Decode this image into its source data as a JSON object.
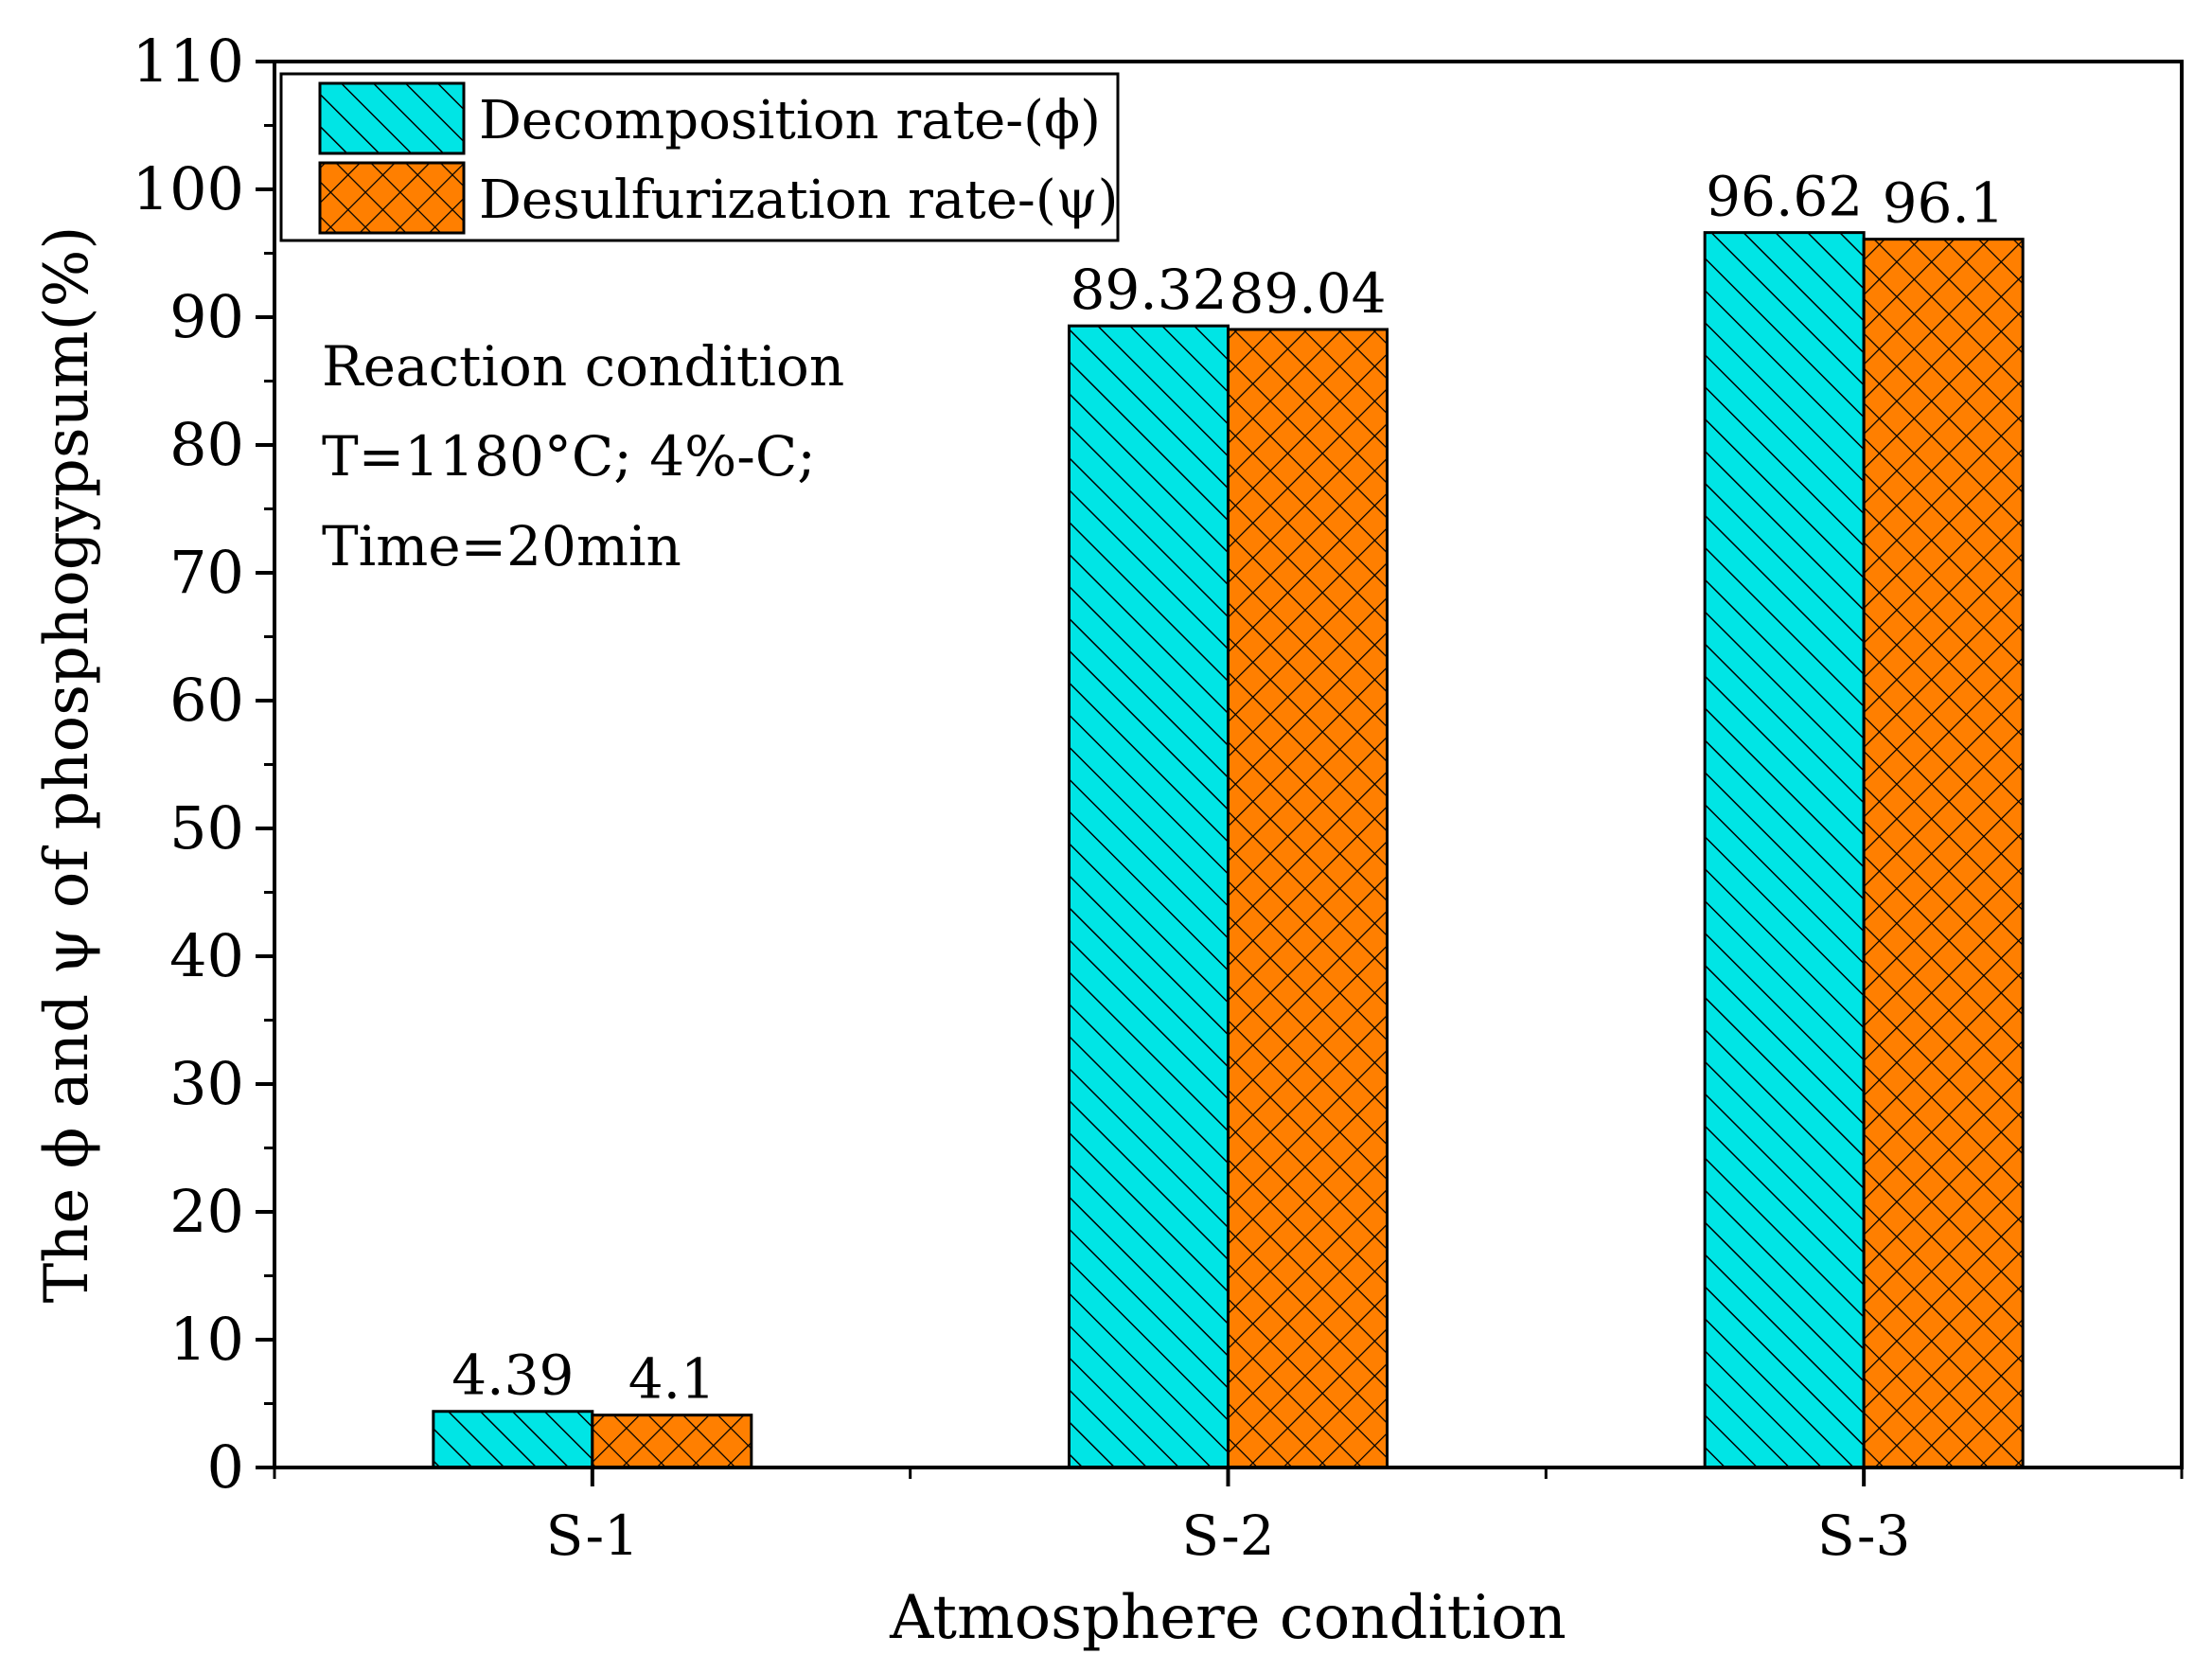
{
  "chart_data": {
    "type": "bar",
    "categories": [
      "S-1",
      "S-2",
      "S-3"
    ],
    "series": [
      {
        "name": "Decomposition rate-(ϕ)",
        "values": [
          4.39,
          89.32,
          96.62
        ],
        "labels": [
          "4.39",
          "89.32",
          "96.62"
        ],
        "color": "#00e5e5",
        "pattern": "diagonal-hatch"
      },
      {
        "name": "Desulfurization rate-(ψ)",
        "values": [
          4.1,
          89.04,
          96.1
        ],
        "labels": [
          "4.1",
          "89.04",
          "96.1"
        ],
        "color": "#ff7f00",
        "pattern": "cross-hatch"
      }
    ],
    "xlabel": "Atmosphere condition",
    "ylabel": "The ϕ and ψ of phosphogypsum(%)",
    "ylim": [
      0,
      110
    ],
    "yticks": [
      0,
      10,
      20,
      30,
      40,
      50,
      60,
      70,
      80,
      90,
      100,
      110
    ],
    "ytick_labels": [
      "0",
      "10",
      "20",
      "30",
      "40",
      "50",
      "60",
      "70",
      "80",
      "90",
      "100",
      "110"
    ],
    "grid": false,
    "legend_position": "top-left",
    "annotation": {
      "lines": [
        "Reaction condition",
        "T=1180°C; 4%-C;",
        "Time=20min"
      ]
    }
  }
}
